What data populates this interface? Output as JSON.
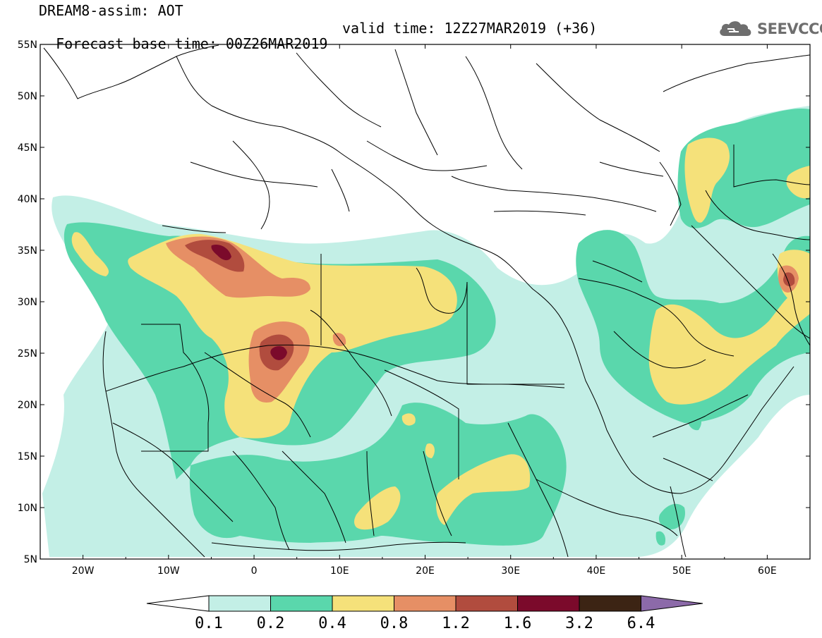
{
  "header": {
    "title": "DREAM8-assim: AOT",
    "base_time": "Forecast base time: 00Z26MAR2019",
    "valid_time": "valid time: 12Z27MAR2019 (+36)"
  },
  "logo": {
    "text": "SEEVCCC",
    "icon": "cloud-icon"
  },
  "map": {
    "lon_range": [
      -25,
      65
    ],
    "lat_range": [
      5,
      55
    ],
    "lon_ticks": [
      {
        "v": -20,
        "label": "20W"
      },
      {
        "v": -10,
        "label": "10W"
      },
      {
        "v": 0,
        "label": "0"
      },
      {
        "v": 10,
        "label": "10E"
      },
      {
        "v": 20,
        "label": "20E"
      },
      {
        "v": 30,
        "label": "30E"
      },
      {
        "v": 40,
        "label": "40E"
      },
      {
        "v": 50,
        "label": "50E"
      },
      {
        "v": 60,
        "label": "60E"
      }
    ],
    "lat_ticks": [
      {
        "v": 55,
        "label": "55N"
      },
      {
        "v": 50,
        "label": "50N"
      },
      {
        "v": 45,
        "label": "45N"
      },
      {
        "v": 40,
        "label": "40N"
      },
      {
        "v": 35,
        "label": "35N"
      },
      {
        "v": 30,
        "label": "30N"
      },
      {
        "v": 25,
        "label": "25N"
      },
      {
        "v": 20,
        "label": "20N"
      },
      {
        "v": 15,
        "label": "15N"
      },
      {
        "v": 10,
        "label": "10N"
      },
      {
        "v": 5,
        "label": "5N"
      }
    ]
  },
  "colorbar": {
    "labels": [
      "0.1",
      "0.2",
      "0.4",
      "0.8",
      "1.2",
      "1.6",
      "3.2",
      "6.4"
    ],
    "colors": [
      "#c3efe6",
      "#5ad7ac",
      "#f5e17a",
      "#e68f65",
      "#b14c3e",
      "#7b0a2b",
      "#3c2414",
      "#8c6aa9"
    ]
  }
}
